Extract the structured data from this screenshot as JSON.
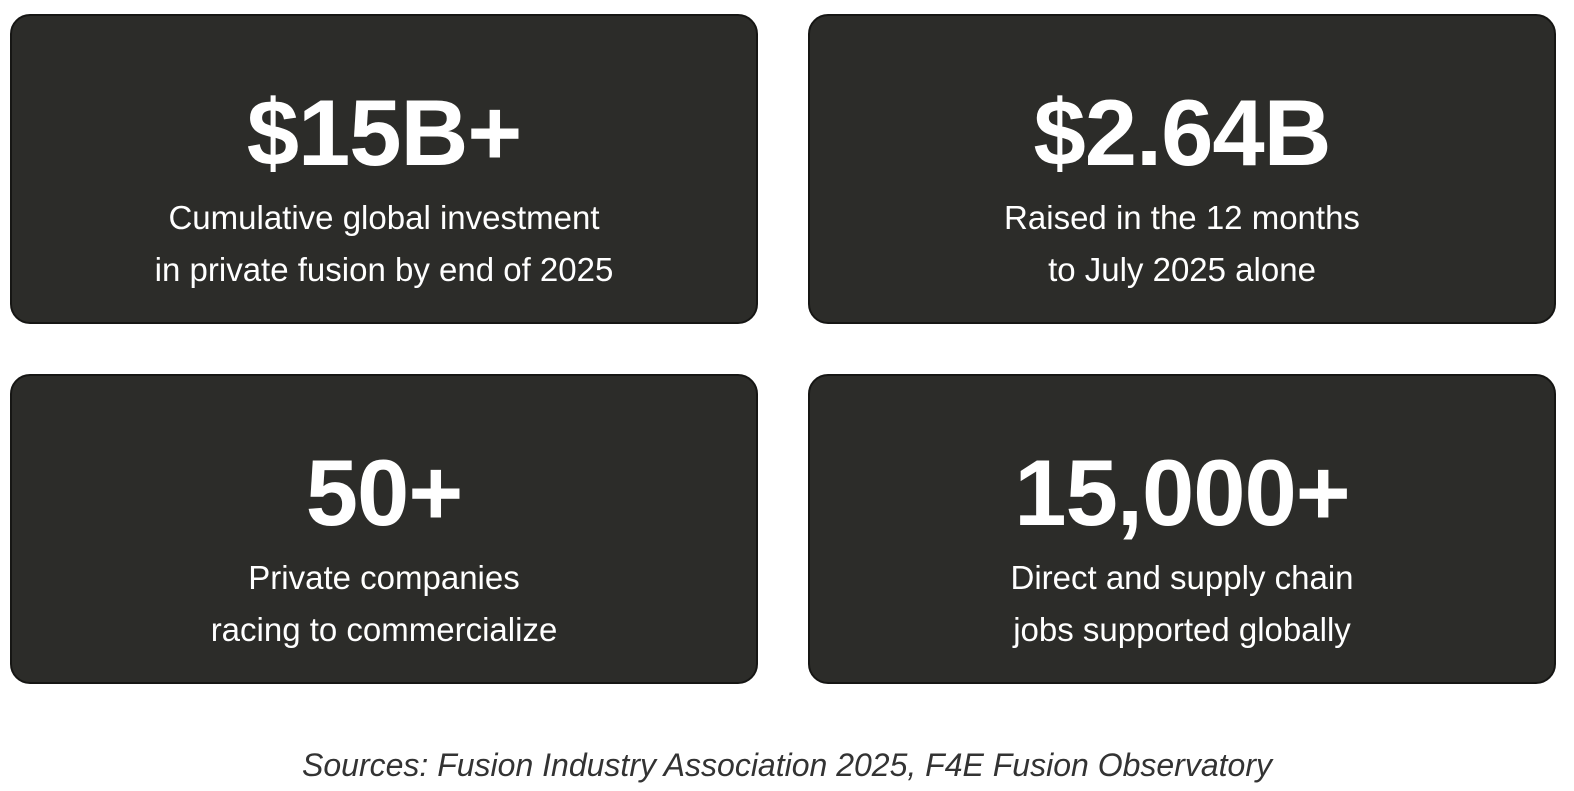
{
  "cards": [
    {
      "figure": "$15B+",
      "lines": [
        "Cumulative global investment",
        "in private fusion by end of 2025"
      ]
    },
    {
      "figure": "$2.64B",
      "lines": [
        "Raised in the 12 months",
        "to July 2025 alone"
      ]
    },
    {
      "figure": "50+",
      "lines": [
        "Private companies",
        "racing to commercialize"
      ]
    },
    {
      "figure": "15,000+",
      "lines": [
        "Direct and supply chain",
        "jobs supported globally"
      ]
    }
  ],
  "footer": {
    "sources": "Sources: Fusion Industry Association 2025, F4E Fusion Observatory"
  }
}
